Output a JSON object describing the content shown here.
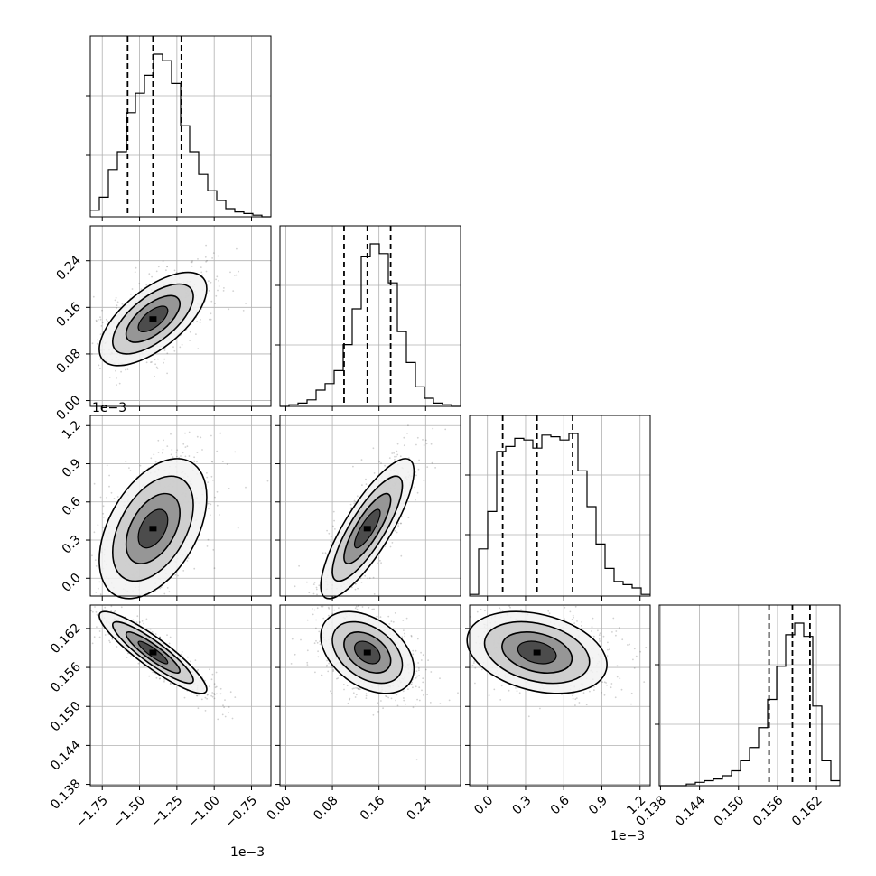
{
  "chart_data": {
    "type": "corner",
    "grid": true,
    "parameters": [
      {
        "index": 0,
        "range": [
          -1.83,
          -0.62
        ],
        "ticks": [
          -1.75,
          -1.5,
          -1.25,
          -1.0,
          -0.75
        ],
        "tick_labels": [
          "−1.75",
          "−1.50",
          "−1.25",
          "−1.00",
          "−0.75"
        ],
        "offset": "1e−3",
        "quantiles": [
          -1.58,
          -1.41,
          -1.22
        ]
      },
      {
        "index": 1,
        "range": [
          -0.01,
          0.3
        ],
        "ticks": [
          0.0,
          0.08,
          0.16,
          0.24
        ],
        "tick_labels": [
          "0.00",
          "0.08",
          "0.16",
          "0.24"
        ],
        "offset": "",
        "quantiles": [
          0.1,
          0.14,
          0.18
        ]
      },
      {
        "index": 2,
        "range": [
          -0.14,
          1.28
        ],
        "ticks": [
          0.0,
          0.3,
          0.6,
          0.9,
          1.2
        ],
        "tick_labels": [
          "0.0",
          "0.3",
          "0.6",
          "0.9",
          "1.2"
        ],
        "offset": "1e−3",
        "quantiles": [
          0.12,
          0.39,
          0.67
        ]
      },
      {
        "index": 3,
        "range": [
          0.1378,
          0.1656
        ],
        "ticks": [
          0.138,
          0.144,
          0.15,
          0.156,
          0.162
        ],
        "tick_labels": [
          "0.138",
          "0.144",
          "0.150",
          "0.156",
          "0.162"
        ],
        "offset": "",
        "quantiles": [
          0.1547,
          0.1583,
          0.161
        ]
      }
    ],
    "histograms": [
      {
        "param": 0,
        "bins": 20,
        "counts": [
          4,
          12,
          29,
          40,
          64,
          76,
          87,
          100,
          96,
          82,
          56,
          40,
          26,
          16,
          10,
          5,
          3,
          2,
          1,
          0
        ]
      },
      {
        "param": 1,
        "bins": 20,
        "counts": [
          0,
          1,
          2,
          4,
          10,
          14,
          22,
          38,
          60,
          92,
          100,
          94,
          76,
          46,
          27,
          12,
          5,
          2,
          1,
          0
        ]
      },
      {
        "param": 2,
        "bins": 20,
        "counts": [
          1,
          29,
          52,
          89,
          92,
          97,
          96,
          91,
          99,
          98,
          96,
          100,
          77,
          55,
          32,
          17,
          9,
          7,
          5,
          1
        ]
      },
      {
        "param": 3,
        "bins": 20,
        "counts": [
          0,
          0,
          0,
          1,
          2,
          3,
          4,
          6,
          9,
          15,
          23,
          35,
          52,
          72,
          91,
          98,
          90,
          48,
          15,
          3
        ]
      }
    ],
    "pairs": [
      {
        "x": 1,
        "y": 0,
        "corr": 0.65
      },
      {
        "x": 2,
        "y": 0,
        "corr": 0.45
      },
      {
        "x": 2,
        "y": 1,
        "corr": 0.82
      },
      {
        "x": 3,
        "y": 0,
        "corr": -0.9
      },
      {
        "x": 3,
        "y": 1,
        "corr": -0.4
      },
      {
        "x": 3,
        "y": 2,
        "corr": -0.3
      }
    ]
  }
}
